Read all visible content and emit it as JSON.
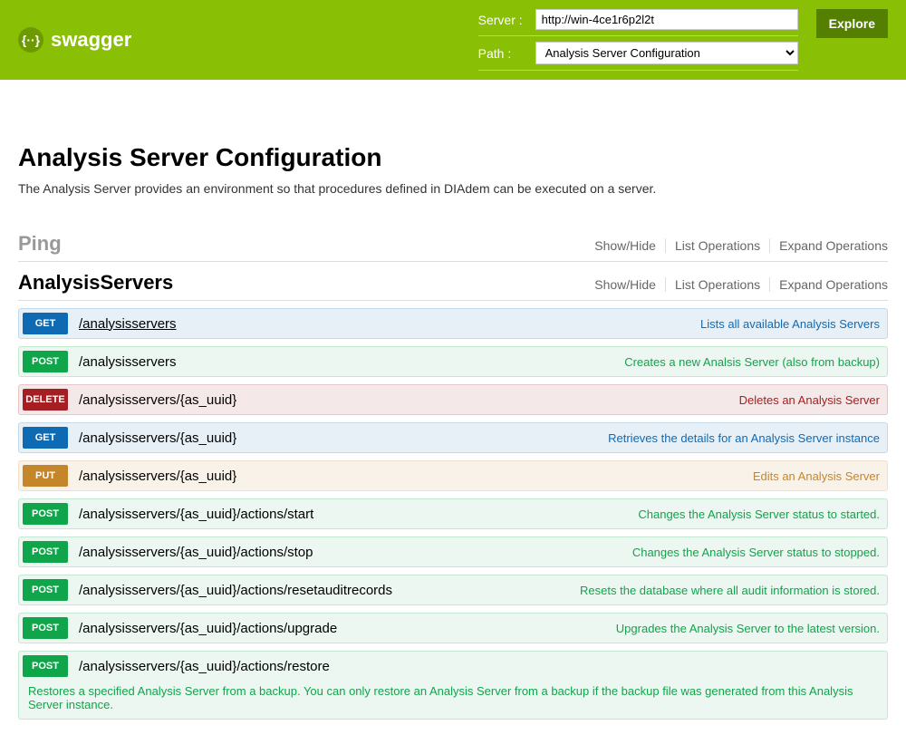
{
  "header": {
    "logo_text": "swagger",
    "server_label": "Server :",
    "server_value": "http://win-4ce1r6p2l2t",
    "path_label": "Path :",
    "path_value": "Analysis Server Configuration",
    "explore_label": "Explore"
  },
  "page": {
    "title": "Analysis Server Configuration",
    "description": "The Analysis Server provides an environment so that procedures defined in DIAdem can be executed on a server."
  },
  "sections": [
    {
      "title": "Ping",
      "active": false,
      "ops_links": [
        "Show/Hide",
        "List Operations",
        "Expand Operations"
      ],
      "operations": []
    },
    {
      "title": "AnalysisServers",
      "active": true,
      "ops_links": [
        "Show/Hide",
        "List Operations",
        "Expand Operations"
      ],
      "operations": [
        {
          "method": "GET",
          "path": "/analysisservers",
          "desc": "Lists all available Analysis Servers",
          "underline": true
        },
        {
          "method": "POST",
          "path": "/analysisservers",
          "desc": "Creates a new Analsis Server (also from backup)"
        },
        {
          "method": "DELETE",
          "path": "/analysisservers/{as_uuid}",
          "desc": "Deletes an Analysis Server"
        },
        {
          "method": "GET",
          "path": "/analysisservers/{as_uuid}",
          "desc": "Retrieves the details for an Analysis Server instance"
        },
        {
          "method": "PUT",
          "path": "/analysisservers/{as_uuid}",
          "desc": "Edits an Analysis Server"
        },
        {
          "method": "POST",
          "path": "/analysisservers/{as_uuid}/actions/start",
          "desc": "Changes the Analysis Server status to started."
        },
        {
          "method": "POST",
          "path": "/analysisservers/{as_uuid}/actions/stop",
          "desc": "Changes the Analysis Server status to stopped."
        },
        {
          "method": "POST",
          "path": "/analysisservers/{as_uuid}/actions/resetauditrecords",
          "desc": "Resets the database where all audit information is stored."
        },
        {
          "method": "POST",
          "path": "/analysisservers/{as_uuid}/actions/upgrade",
          "desc": "Upgrades the Analysis Server to the latest version."
        },
        {
          "method": "POST",
          "path": "/analysisservers/{as_uuid}/actions/restore",
          "desc": "",
          "note": "Restores a specified Analysis Server from a backup. You can only restore an Analysis Server from a backup if the backup file was generated from this Analysis Server instance."
        }
      ]
    }
  ],
  "colors": {
    "header_bg": "#89bf04",
    "get": "#0f6ab4",
    "post": "#10a54a",
    "delete": "#a41e22",
    "put": "#c5862b"
  }
}
